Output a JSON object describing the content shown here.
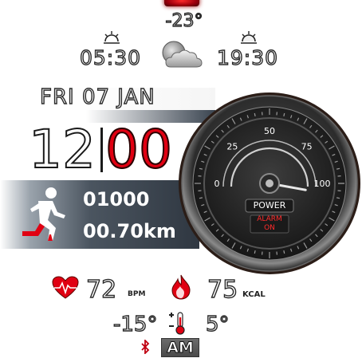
{
  "top_indicator": {
    "color": "#c00010"
  },
  "weather": {
    "current_temp": "-23°",
    "sunrise_time": "05:30",
    "sunset_time": "19:30",
    "condition_icon": "partly-cloudy-icon"
  },
  "date": {
    "text": "FRI 07 JAN"
  },
  "time": {
    "hours": "12",
    "minutes": "00",
    "accent_color": "#e00012"
  },
  "activity": {
    "steps": "01000",
    "distance": "00.70km",
    "icon": "runner-icon"
  },
  "gauge": {
    "ticks": [
      "0",
      "25",
      "50",
      "75",
      "100"
    ],
    "value_percent": 100,
    "power_label": "POWER",
    "alarm_line1": "ALARM",
    "alarm_line2": "ON"
  },
  "health": {
    "heart_rate": "72",
    "heart_unit": "BPM",
    "calories": "75",
    "calories_unit": "KCAL"
  },
  "temperature": {
    "min": "-15°",
    "max": "5°"
  },
  "status": {
    "ampm": "AM",
    "bluetooth_icon": "bluetooth-icon"
  }
}
